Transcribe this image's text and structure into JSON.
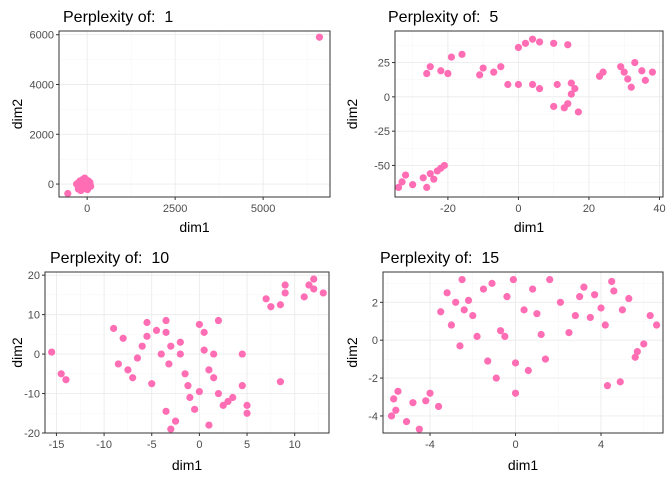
{
  "colors": {
    "point": "#FF6EB4",
    "accent": "#F5679F"
  },
  "chart_data": [
    {
      "type": "scatter",
      "title": "Perplexity of:  1",
      "xlabel": "dim1",
      "ylabel": "dim2",
      "xlim": [
        -800,
        6900
      ],
      "ylim": [
        -520,
        6150
      ],
      "xticks": [
        0,
        2500,
        5000
      ],
      "yticks": [
        0,
        2000,
        4000,
        6000
      ],
      "xticklabels": [
        "0",
        "2500",
        "5000"
      ],
      "yticklabels": [
        "0",
        "2000",
        "4000",
        "6000"
      ],
      "grid": true,
      "points": [
        [
          6600,
          5900
        ],
        [
          -550,
          -380
        ],
        [
          -300,
          0
        ],
        [
          -260,
          40
        ],
        [
          -230,
          -120
        ],
        [
          -200,
          130
        ],
        [
          -180,
          -260
        ],
        [
          -150,
          60
        ],
        [
          -130,
          -40
        ],
        [
          -110,
          200
        ],
        [
          -90,
          -180
        ],
        [
          -60,
          90
        ],
        [
          -40,
          -60
        ],
        [
          -20,
          170
        ],
        [
          0,
          20
        ],
        [
          20,
          -140
        ],
        [
          40,
          120
        ],
        [
          60,
          -30
        ],
        [
          80,
          60
        ],
        [
          100,
          -90
        ],
        [
          -250,
          -200
        ],
        [
          -70,
          240
        ],
        [
          10,
          -220
        ],
        [
          -120,
          130
        ]
      ]
    },
    {
      "type": "scatter",
      "title": "Perplexity of:  5",
      "xlabel": "dim1",
      "ylabel": "dim2",
      "xlim": [
        -35,
        41
      ],
      "ylim": [
        -73,
        48
      ],
      "xticks": [
        -20,
        0,
        20,
        40
      ],
      "yticks": [
        -50,
        -25,
        0,
        25
      ],
      "xticklabels": [
        "-20",
        "0",
        "20",
        "40"
      ],
      "yticklabels": [
        "-50",
        "-25",
        "0",
        "25"
      ],
      "grid": true,
      "points": [
        [
          -32,
          -57
        ],
        [
          -33,
          -62
        ],
        [
          -34,
          -66
        ],
        [
          -30,
          -64
        ],
        [
          -27,
          -59
        ],
        [
          -26,
          -66
        ],
        [
          -25,
          -56
        ],
        [
          -24,
          -60
        ],
        [
          -23,
          -54
        ],
        [
          -22,
          -52
        ],
        [
          -21,
          -50
        ],
        [
          -26,
          17
        ],
        [
          -25,
          22
        ],
        [
          -22,
          19
        ],
        [
          -19,
          29
        ],
        [
          -16,
          31
        ],
        [
          -20,
          17
        ],
        [
          -11,
          16
        ],
        [
          -10,
          21
        ],
        [
          -7,
          18
        ],
        [
          -5,
          22
        ],
        [
          -3,
          9
        ],
        [
          0,
          36
        ],
        [
          2,
          39
        ],
        [
          4,
          42
        ],
        [
          6,
          40
        ],
        [
          10,
          39
        ],
        [
          14,
          38
        ],
        [
          0,
          9
        ],
        [
          4,
          9
        ],
        [
          6,
          6
        ],
        [
          10,
          -7
        ],
        [
          11,
          9
        ],
        [
          13,
          -8
        ],
        [
          14,
          -5
        ],
        [
          15,
          10
        ],
        [
          16,
          6
        ],
        [
          15,
          2
        ],
        [
          17,
          -11
        ],
        [
          23,
          15
        ],
        [
          24,
          18
        ],
        [
          29,
          22
        ],
        [
          30,
          18
        ],
        [
          31,
          13
        ],
        [
          32,
          7
        ],
        [
          33,
          25
        ],
        [
          35,
          19
        ],
        [
          36,
          12
        ],
        [
          38,
          18
        ]
      ]
    },
    {
      "type": "scatter",
      "title": "Perplexity of:  10",
      "xlabel": "dim1",
      "ylabel": "dim2",
      "xlim": [
        -16.2,
        13.6
      ],
      "ylim": [
        -20,
        20.8
      ],
      "xticks": [
        -15,
        -10,
        -5,
        0,
        5,
        10
      ],
      "yticks": [
        -20,
        -10,
        0,
        10,
        20
      ],
      "xticklabels": [
        "-15",
        "-10",
        "-5",
        "0",
        "5",
        "10"
      ],
      "yticklabels": [
        "-20",
        "-10",
        "0",
        "10",
        "20"
      ],
      "grid": true,
      "points": [
        [
          -15.5,
          0.5
        ],
        [
          -14.5,
          -5
        ],
        [
          -14,
          -6.5
        ],
        [
          -9,
          6.5
        ],
        [
          -8.5,
          -2.5
        ],
        [
          -8,
          4
        ],
        [
          -7.5,
          -4
        ],
        [
          -7,
          -6
        ],
        [
          -6.5,
          -1
        ],
        [
          -6,
          2
        ],
        [
          -5.5,
          8
        ],
        [
          -5.5,
          4.5
        ],
        [
          -5,
          -7.5
        ],
        [
          -4.5,
          6
        ],
        [
          -4,
          0
        ],
        [
          -3.5,
          8.5
        ],
        [
          -3.5,
          5.5
        ],
        [
          -3.2,
          -2.5
        ],
        [
          -3,
          2
        ],
        [
          -3,
          -19
        ],
        [
          -2.5,
          -17
        ],
        [
          -2,
          3
        ],
        [
          -2,
          0
        ],
        [
          -1.5,
          -5
        ],
        [
          -1.2,
          -8
        ],
        [
          -1,
          -11
        ],
        [
          -0.5,
          -14
        ],
        [
          0,
          7.5
        ],
        [
          0,
          -9.5
        ],
        [
          0.5,
          5.5
        ],
        [
          0.5,
          1
        ],
        [
          1,
          -4
        ],
        [
          1,
          -18
        ],
        [
          1.5,
          0
        ],
        [
          1.5,
          -6
        ],
        [
          2,
          8.5
        ],
        [
          2,
          -10
        ],
        [
          2.5,
          -13
        ],
        [
          3,
          -12
        ],
        [
          3.5,
          -11
        ],
        [
          4.5,
          -8
        ],
        [
          4.5,
          0
        ],
        [
          5,
          -13
        ],
        [
          5,
          -15
        ],
        [
          7,
          14
        ],
        [
          7.5,
          12
        ],
        [
          8.5,
          -7
        ],
        [
          8.5,
          12.5
        ],
        [
          9,
          15.5
        ],
        [
          9,
          17.5
        ],
        [
          11,
          14.5
        ],
        [
          11.5,
          17.5
        ],
        [
          12,
          16.5
        ],
        [
          12,
          19
        ],
        [
          13,
          15.5
        ],
        [
          -3.5,
          -14.5
        ]
      ]
    },
    {
      "type": "scatter",
      "title": "Perplexity of:  15",
      "xlabel": "dim1",
      "ylabel": "dim2",
      "xlim": [
        -6.2,
        6.9
      ],
      "ylim": [
        -4.9,
        3.6
      ],
      "xticks": [
        -4,
        0,
        4
      ],
      "yticks": [
        -4,
        -2,
        0,
        2
      ],
      "xticklabels": [
        "-4",
        "0",
        "4"
      ],
      "yticklabels": [
        "-4",
        "-2",
        "0",
        "2"
      ],
      "grid": true,
      "points": [
        [
          -5.8,
          -4
        ],
        [
          -5.6,
          -3.7
        ],
        [
          -5.7,
          -3.1
        ],
        [
          -5.5,
          -2.7
        ],
        [
          -5.1,
          -4.3
        ],
        [
          -4.8,
          -3.3
        ],
        [
          -4.5,
          -4.7
        ],
        [
          -4.2,
          -3.2
        ],
        [
          -4.0,
          -2.8
        ],
        [
          -3.6,
          -3.5
        ],
        [
          -3.5,
          1.5
        ],
        [
          -3.2,
          2.5
        ],
        [
          -3.0,
          0.8
        ],
        [
          -2.8,
          2.0
        ],
        [
          -2.6,
          -0.3
        ],
        [
          -2.5,
          3.2
        ],
        [
          -2.4,
          1.6
        ],
        [
          -2.2,
          2.1
        ],
        [
          -2.0,
          1.3
        ],
        [
          -1.8,
          0.2
        ],
        [
          -1.5,
          2.7
        ],
        [
          -1.3,
          -1.1
        ],
        [
          -1.1,
          3.0
        ],
        [
          -0.9,
          -2.0
        ],
        [
          -0.7,
          0.5
        ],
        [
          -0.4,
          2.3
        ],
        [
          -0.1,
          3.2
        ],
        [
          -0.5,
          0.2
        ],
        [
          0.0,
          -1.2
        ],
        [
          0.0,
          -2.8
        ],
        [
          0.4,
          1.6
        ],
        [
          0.6,
          -1.6
        ],
        [
          0.8,
          2.7
        ],
        [
          1.0,
          1.4
        ],
        [
          1.2,
          0.3
        ],
        [
          1.4,
          -1.0
        ],
        [
          1.6,
          3.2
        ],
        [
          2.1,
          2.0
        ],
        [
          2.5,
          0.4
        ],
        [
          2.8,
          1.3
        ],
        [
          3.0,
          2.3
        ],
        [
          3.2,
          2.8
        ],
        [
          3.5,
          1.2
        ],
        [
          3.7,
          2.4
        ],
        [
          4.0,
          1.7
        ],
        [
          4.2,
          0.8
        ],
        [
          4.3,
          -2.4
        ],
        [
          4.5,
          3.1
        ],
        [
          4.6,
          2.6
        ],
        [
          4.9,
          -2.2
        ],
        [
          5.0,
          1.6
        ],
        [
          5.3,
          2.2
        ],
        [
          5.6,
          -0.9
        ],
        [
          5.7,
          -0.6
        ],
        [
          6.0,
          -0.2
        ],
        [
          6.3,
          1.3
        ],
        [
          6.6,
          0.8
        ]
      ]
    }
  ]
}
